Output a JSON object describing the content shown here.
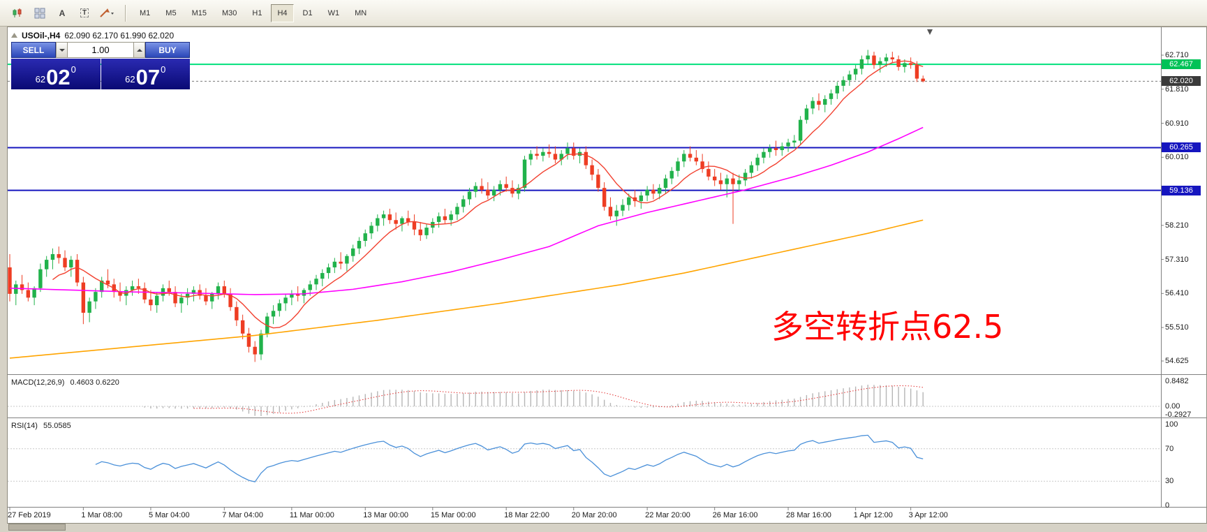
{
  "toolbar": {
    "timeframes": [
      "M1",
      "M5",
      "M15",
      "M30",
      "H1",
      "H4",
      "D1",
      "W1",
      "MN"
    ],
    "selected_timeframe": "H4",
    "font_tool_glyph": "A",
    "text_tool_glyph": "T"
  },
  "chart_header": {
    "symbol": "USOil-,H4",
    "ohlc": "62.090 62.170 61.990 62.020"
  },
  "trade_panel": {
    "sell_label": "SELL",
    "buy_label": "BUY",
    "volume": "1.00",
    "bid": {
      "prefix": "62",
      "big": "02",
      "sup": "0"
    },
    "ask": {
      "prefix": "62",
      "big": "07",
      "sup": "0"
    }
  },
  "annotation": {
    "text": "多空转折点62.5",
    "color": "#ff0000"
  },
  "macd_panel": {
    "title": "MACD(12,26,9)",
    "values": "0.4603 0.6220",
    "scale_labels": [
      "0.8482",
      "0.00",
      "-0.2927"
    ],
    "scale_values": [
      0.8482,
      0,
      -0.2927
    ]
  },
  "rsi_panel": {
    "title": "RSI(14)",
    "value": "55.0585",
    "scale_labels": [
      "100",
      "70",
      "30",
      "0"
    ],
    "scale_values": [
      100,
      70,
      30,
      0
    ]
  },
  "chart_data": {
    "type": "candlestick",
    "symbol": "USOil-",
    "timeframe": "H4",
    "colors": {
      "up": "#21b24b",
      "down": "#ee3d23",
      "ma_fast": "#f24130",
      "ma_mid": "#ff00ff",
      "ma_slow": "#ffa400",
      "macd_hist": "#b6b6b6",
      "macd_signal": "#e23030",
      "rsi": "#4a90d9",
      "grid_dotted": "#c8c8c8",
      "axis": "#808080"
    },
    "y_ticks": [
      62.71,
      61.81,
      60.91,
      60.01,
      58.21,
      57.31,
      56.41,
      55.51,
      54.625
    ],
    "hlines": [
      {
        "price": 62.467,
        "label": "62.467",
        "line_color": "#00e07c",
        "badge_color": "#00c257",
        "width": 2
      },
      {
        "price": 60.265,
        "label": "60.265",
        "line_color": "#1616bf",
        "badge_color": "#1616bf",
        "width": 2
      },
      {
        "price": 59.136,
        "label": "59.136",
        "line_color": "#1616bf",
        "badge_color": "#1616bf",
        "width": 2
      }
    ],
    "current_price": {
      "value": 62.02,
      "label": "62.020",
      "badge_color": "#3a3a3a"
    },
    "ma_fast_period": 8,
    "macd_params": {
      "fast": 12,
      "slow": 26,
      "signal": 9
    },
    "rsi_params": {
      "period": 14
    },
    "time_labels": [
      {
        "text": "27 Feb 2019",
        "index": 0
      },
      {
        "text": "1 Mar 08:00",
        "index": 12
      },
      {
        "text": "5 Mar 04:00",
        "index": 23
      },
      {
        "text": "7 Mar 04:00",
        "index": 35
      },
      {
        "text": "11 Mar 00:00",
        "index": 46
      },
      {
        "text": "13 Mar 00:00",
        "index": 58
      },
      {
        "text": "15 Mar 00:00",
        "index": 69
      },
      {
        "text": "18 Mar 22:00",
        "index": 81
      },
      {
        "text": "20 Mar 20:00",
        "index": 92
      },
      {
        "text": "22 Mar 20:00",
        "index": 104
      },
      {
        "text": "26 Mar 16:00",
        "index": 115
      },
      {
        "text": "28 Mar 16:00",
        "index": 127
      },
      {
        "text": "1 Apr 12:00",
        "index": 138
      },
      {
        "text": "3 Apr 12:00",
        "index": 147
      }
    ],
    "ma_mid_anchors": [
      [
        0,
        56.55
      ],
      [
        10,
        56.5
      ],
      [
        20,
        56.45
      ],
      [
        30,
        56.42
      ],
      [
        40,
        56.38
      ],
      [
        48,
        56.4
      ],
      [
        56,
        56.52
      ],
      [
        64,
        56.72
      ],
      [
        72,
        56.98
      ],
      [
        80,
        57.3
      ],
      [
        88,
        57.65
      ],
      [
        96,
        58.2
      ],
      [
        104,
        58.55
      ],
      [
        112,
        58.85
      ],
      [
        120,
        59.15
      ],
      [
        128,
        59.5
      ],
      [
        134,
        59.8
      ],
      [
        140,
        60.15
      ],
      [
        145,
        60.5
      ],
      [
        149,
        60.8
      ]
    ],
    "ma_slow_anchors": [
      [
        0,
        54.7
      ],
      [
        20,
        55.0
      ],
      [
        40,
        55.3
      ],
      [
        60,
        55.7
      ],
      [
        80,
        56.15
      ],
      [
        100,
        56.65
      ],
      [
        110,
        56.95
      ],
      [
        120,
        57.3
      ],
      [
        130,
        57.65
      ],
      [
        140,
        58.0
      ],
      [
        149,
        58.35
      ]
    ],
    "candles": [
      [
        57.1,
        57.45,
        56.2,
        56.4
      ],
      [
        56.4,
        56.75,
        56.1,
        56.65
      ],
      [
        56.65,
        56.9,
        56.4,
        56.5
      ],
      [
        56.5,
        56.7,
        56.2,
        56.3
      ],
      [
        56.3,
        56.6,
        56.1,
        56.55
      ],
      [
        56.55,
        57.2,
        56.45,
        57.05
      ],
      [
        57.05,
        57.4,
        56.85,
        57.3
      ],
      [
        57.3,
        57.6,
        57.05,
        57.45
      ],
      [
        57.45,
        57.65,
        57.2,
        57.35
      ],
      [
        57.35,
        57.55,
        57.0,
        57.1
      ],
      [
        57.1,
        57.4,
        56.85,
        57.3
      ],
      [
        57.3,
        57.45,
        56.6,
        56.7
      ],
      [
        56.7,
        56.85,
        55.6,
        55.9
      ],
      [
        55.9,
        56.3,
        55.65,
        56.2
      ],
      [
        56.2,
        56.55,
        56.0,
        56.45
      ],
      [
        56.45,
        56.85,
        56.3,
        56.75
      ],
      [
        56.75,
        57.05,
        56.55,
        56.65
      ],
      [
        56.65,
        56.8,
        56.3,
        56.45
      ],
      [
        56.45,
        56.7,
        56.2,
        56.35
      ],
      [
        56.35,
        56.6,
        56.1,
        56.5
      ],
      [
        56.5,
        56.75,
        56.35,
        56.6
      ],
      [
        56.6,
        56.8,
        56.4,
        56.55
      ],
      [
        56.55,
        56.7,
        56.15,
        56.25
      ],
      [
        56.25,
        56.5,
        55.95,
        56.1
      ],
      [
        56.1,
        56.45,
        55.9,
        56.35
      ],
      [
        56.35,
        56.65,
        56.2,
        56.55
      ],
      [
        56.55,
        56.75,
        56.35,
        56.45
      ],
      [
        56.45,
        56.6,
        56.05,
        56.15
      ],
      [
        56.15,
        56.4,
        55.9,
        56.3
      ],
      [
        56.3,
        56.55,
        56.1,
        56.4
      ],
      [
        56.4,
        56.6,
        56.2,
        56.5
      ],
      [
        56.5,
        56.65,
        56.25,
        56.35
      ],
      [
        56.35,
        56.55,
        56.1,
        56.2
      ],
      [
        56.2,
        56.45,
        56.0,
        56.4
      ],
      [
        56.4,
        56.7,
        56.25,
        56.6
      ],
      [
        56.6,
        56.75,
        56.3,
        56.4
      ],
      [
        56.4,
        56.55,
        55.95,
        56.05
      ],
      [
        56.05,
        56.2,
        55.55,
        55.7
      ],
      [
        55.7,
        55.85,
        55.2,
        55.35
      ],
      [
        55.35,
        55.5,
        54.85,
        55.0
      ],
      [
        55.0,
        55.15,
        54.6,
        54.8
      ],
      [
        54.8,
        55.45,
        54.65,
        55.35
      ],
      [
        55.35,
        55.9,
        55.25,
        55.8
      ],
      [
        55.8,
        56.1,
        55.6,
        55.95
      ],
      [
        55.95,
        56.25,
        55.8,
        56.15
      ],
      [
        56.15,
        56.4,
        55.95,
        56.3
      ],
      [
        56.3,
        56.5,
        56.1,
        56.4
      ],
      [
        56.4,
        56.6,
        56.2,
        56.35
      ],
      [
        56.35,
        56.55,
        56.15,
        56.5
      ],
      [
        56.5,
        56.75,
        56.35,
        56.65
      ],
      [
        56.65,
        56.9,
        56.5,
        56.8
      ],
      [
        56.8,
        57.05,
        56.6,
        56.95
      ],
      [
        56.95,
        57.2,
        56.8,
        57.1
      ],
      [
        57.1,
        57.35,
        56.95,
        57.25
      ],
      [
        57.25,
        57.5,
        57.05,
        57.2
      ],
      [
        57.2,
        57.45,
        57.0,
        57.4
      ],
      [
        57.4,
        57.7,
        57.25,
        57.6
      ],
      [
        57.6,
        57.9,
        57.45,
        57.8
      ],
      [
        57.8,
        58.1,
        57.65,
        58.0
      ],
      [
        58.0,
        58.3,
        57.85,
        58.2
      ],
      [
        58.2,
        58.5,
        58.05,
        58.4
      ],
      [
        58.4,
        58.6,
        58.2,
        58.5
      ],
      [
        58.5,
        58.65,
        58.25,
        58.35
      ],
      [
        58.35,
        58.55,
        58.1,
        58.25
      ],
      [
        58.25,
        58.45,
        58.05,
        58.4
      ],
      [
        58.4,
        58.6,
        58.2,
        58.3
      ],
      [
        58.3,
        58.5,
        57.95,
        58.1
      ],
      [
        58.1,
        58.3,
        57.8,
        57.95
      ],
      [
        57.95,
        58.25,
        57.85,
        58.15
      ],
      [
        58.15,
        58.4,
        58.0,
        58.3
      ],
      [
        58.3,
        58.55,
        58.15,
        58.45
      ],
      [
        58.45,
        58.65,
        58.25,
        58.35
      ],
      [
        58.35,
        58.6,
        58.2,
        58.5
      ],
      [
        58.5,
        58.8,
        58.35,
        58.7
      ],
      [
        58.7,
        59.0,
        58.55,
        58.9
      ],
      [
        58.9,
        59.2,
        58.75,
        59.1
      ],
      [
        59.1,
        59.35,
        58.95,
        59.25
      ],
      [
        59.25,
        59.45,
        59.05,
        59.15
      ],
      [
        59.15,
        59.35,
        58.9,
        59.0
      ],
      [
        59.0,
        59.25,
        58.85,
        59.15
      ],
      [
        59.15,
        59.4,
        59.0,
        59.3
      ],
      [
        59.3,
        59.5,
        59.1,
        59.2
      ],
      [
        59.2,
        59.4,
        58.95,
        59.05
      ],
      [
        59.05,
        59.3,
        58.9,
        59.2
      ],
      [
        59.2,
        60.05,
        59.1,
        59.95
      ],
      [
        59.95,
        60.2,
        59.8,
        60.1
      ],
      [
        60.1,
        60.3,
        59.95,
        60.05
      ],
      [
        60.05,
        60.25,
        59.9,
        60.15
      ],
      [
        60.15,
        60.35,
        60.0,
        60.1
      ],
      [
        60.1,
        60.3,
        59.85,
        59.95
      ],
      [
        59.95,
        60.2,
        59.8,
        60.1
      ],
      [
        60.1,
        60.4,
        59.95,
        60.25
      ],
      [
        60.25,
        60.4,
        59.95,
        60.05
      ],
      [
        60.05,
        60.25,
        59.85,
        60.15
      ],
      [
        60.15,
        60.3,
        59.7,
        59.8
      ],
      [
        59.8,
        59.95,
        59.4,
        59.55
      ],
      [
        59.55,
        59.7,
        59.1,
        59.2
      ],
      [
        59.2,
        59.35,
        58.6,
        58.7
      ],
      [
        58.7,
        58.95,
        58.35,
        58.45
      ],
      [
        58.45,
        58.75,
        58.2,
        58.6
      ],
      [
        58.6,
        58.9,
        58.45,
        58.75
      ],
      [
        58.75,
        59.05,
        58.6,
        58.95
      ],
      [
        58.95,
        59.15,
        58.7,
        58.85
      ],
      [
        58.85,
        59.1,
        58.65,
        59.0
      ],
      [
        59.0,
        59.25,
        58.85,
        59.15
      ],
      [
        59.15,
        59.3,
        58.9,
        59.05
      ],
      [
        59.05,
        59.3,
        58.9,
        59.2
      ],
      [
        59.2,
        59.55,
        59.05,
        59.45
      ],
      [
        59.45,
        59.75,
        59.3,
        59.65
      ],
      [
        59.65,
        60.0,
        59.5,
        59.9
      ],
      [
        59.9,
        60.2,
        59.75,
        60.1
      ],
      [
        60.1,
        60.3,
        59.9,
        60.0
      ],
      [
        60.0,
        60.2,
        59.8,
        59.9
      ],
      [
        59.9,
        60.1,
        59.6,
        59.7
      ],
      [
        59.7,
        59.9,
        59.4,
        59.5
      ],
      [
        59.5,
        59.7,
        59.25,
        59.4
      ],
      [
        59.4,
        59.6,
        59.15,
        59.3
      ],
      [
        59.3,
        59.55,
        58.95,
        59.45
      ],
      [
        59.45,
        59.6,
        58.25,
        59.3
      ],
      [
        59.3,
        59.55,
        59.1,
        59.4
      ],
      [
        59.4,
        59.7,
        59.25,
        59.6
      ],
      [
        59.6,
        59.9,
        59.45,
        59.8
      ],
      [
        59.8,
        60.1,
        59.65,
        60.0
      ],
      [
        60.0,
        60.25,
        59.85,
        60.15
      ],
      [
        60.15,
        60.35,
        60.0,
        60.25
      ],
      [
        60.25,
        60.45,
        60.05,
        60.2
      ],
      [
        60.2,
        60.4,
        60.05,
        60.3
      ],
      [
        60.3,
        60.5,
        60.15,
        60.4
      ],
      [
        60.4,
        60.6,
        60.25,
        60.45
      ],
      [
        60.45,
        61.1,
        60.35,
        61.0
      ],
      [
        61.0,
        61.4,
        60.9,
        61.3
      ],
      [
        61.3,
        61.6,
        61.15,
        61.5
      ],
      [
        61.5,
        61.7,
        61.25,
        61.4
      ],
      [
        61.4,
        61.65,
        61.2,
        61.55
      ],
      [
        61.55,
        61.8,
        61.4,
        61.7
      ],
      [
        61.7,
        62.0,
        61.55,
        61.9
      ],
      [
        61.9,
        62.15,
        61.75,
        62.05
      ],
      [
        62.05,
        62.3,
        61.9,
        62.2
      ],
      [
        62.2,
        62.45,
        62.05,
        62.35
      ],
      [
        62.35,
        62.7,
        62.2,
        62.6
      ],
      [
        62.6,
        62.85,
        62.45,
        62.7
      ],
      [
        62.7,
        62.8,
        62.35,
        62.45
      ],
      [
        62.45,
        62.65,
        62.25,
        62.55
      ],
      [
        62.55,
        62.75,
        62.4,
        62.65
      ],
      [
        62.65,
        62.8,
        62.5,
        62.6
      ],
      [
        62.6,
        62.7,
        62.3,
        62.4
      ],
      [
        62.4,
        62.6,
        62.25,
        62.5
      ],
      [
        62.5,
        62.65,
        62.35,
        62.45
      ],
      [
        62.45,
        62.55,
        62.0,
        62.09
      ],
      [
        62.09,
        62.17,
        61.99,
        62.02
      ]
    ]
  }
}
